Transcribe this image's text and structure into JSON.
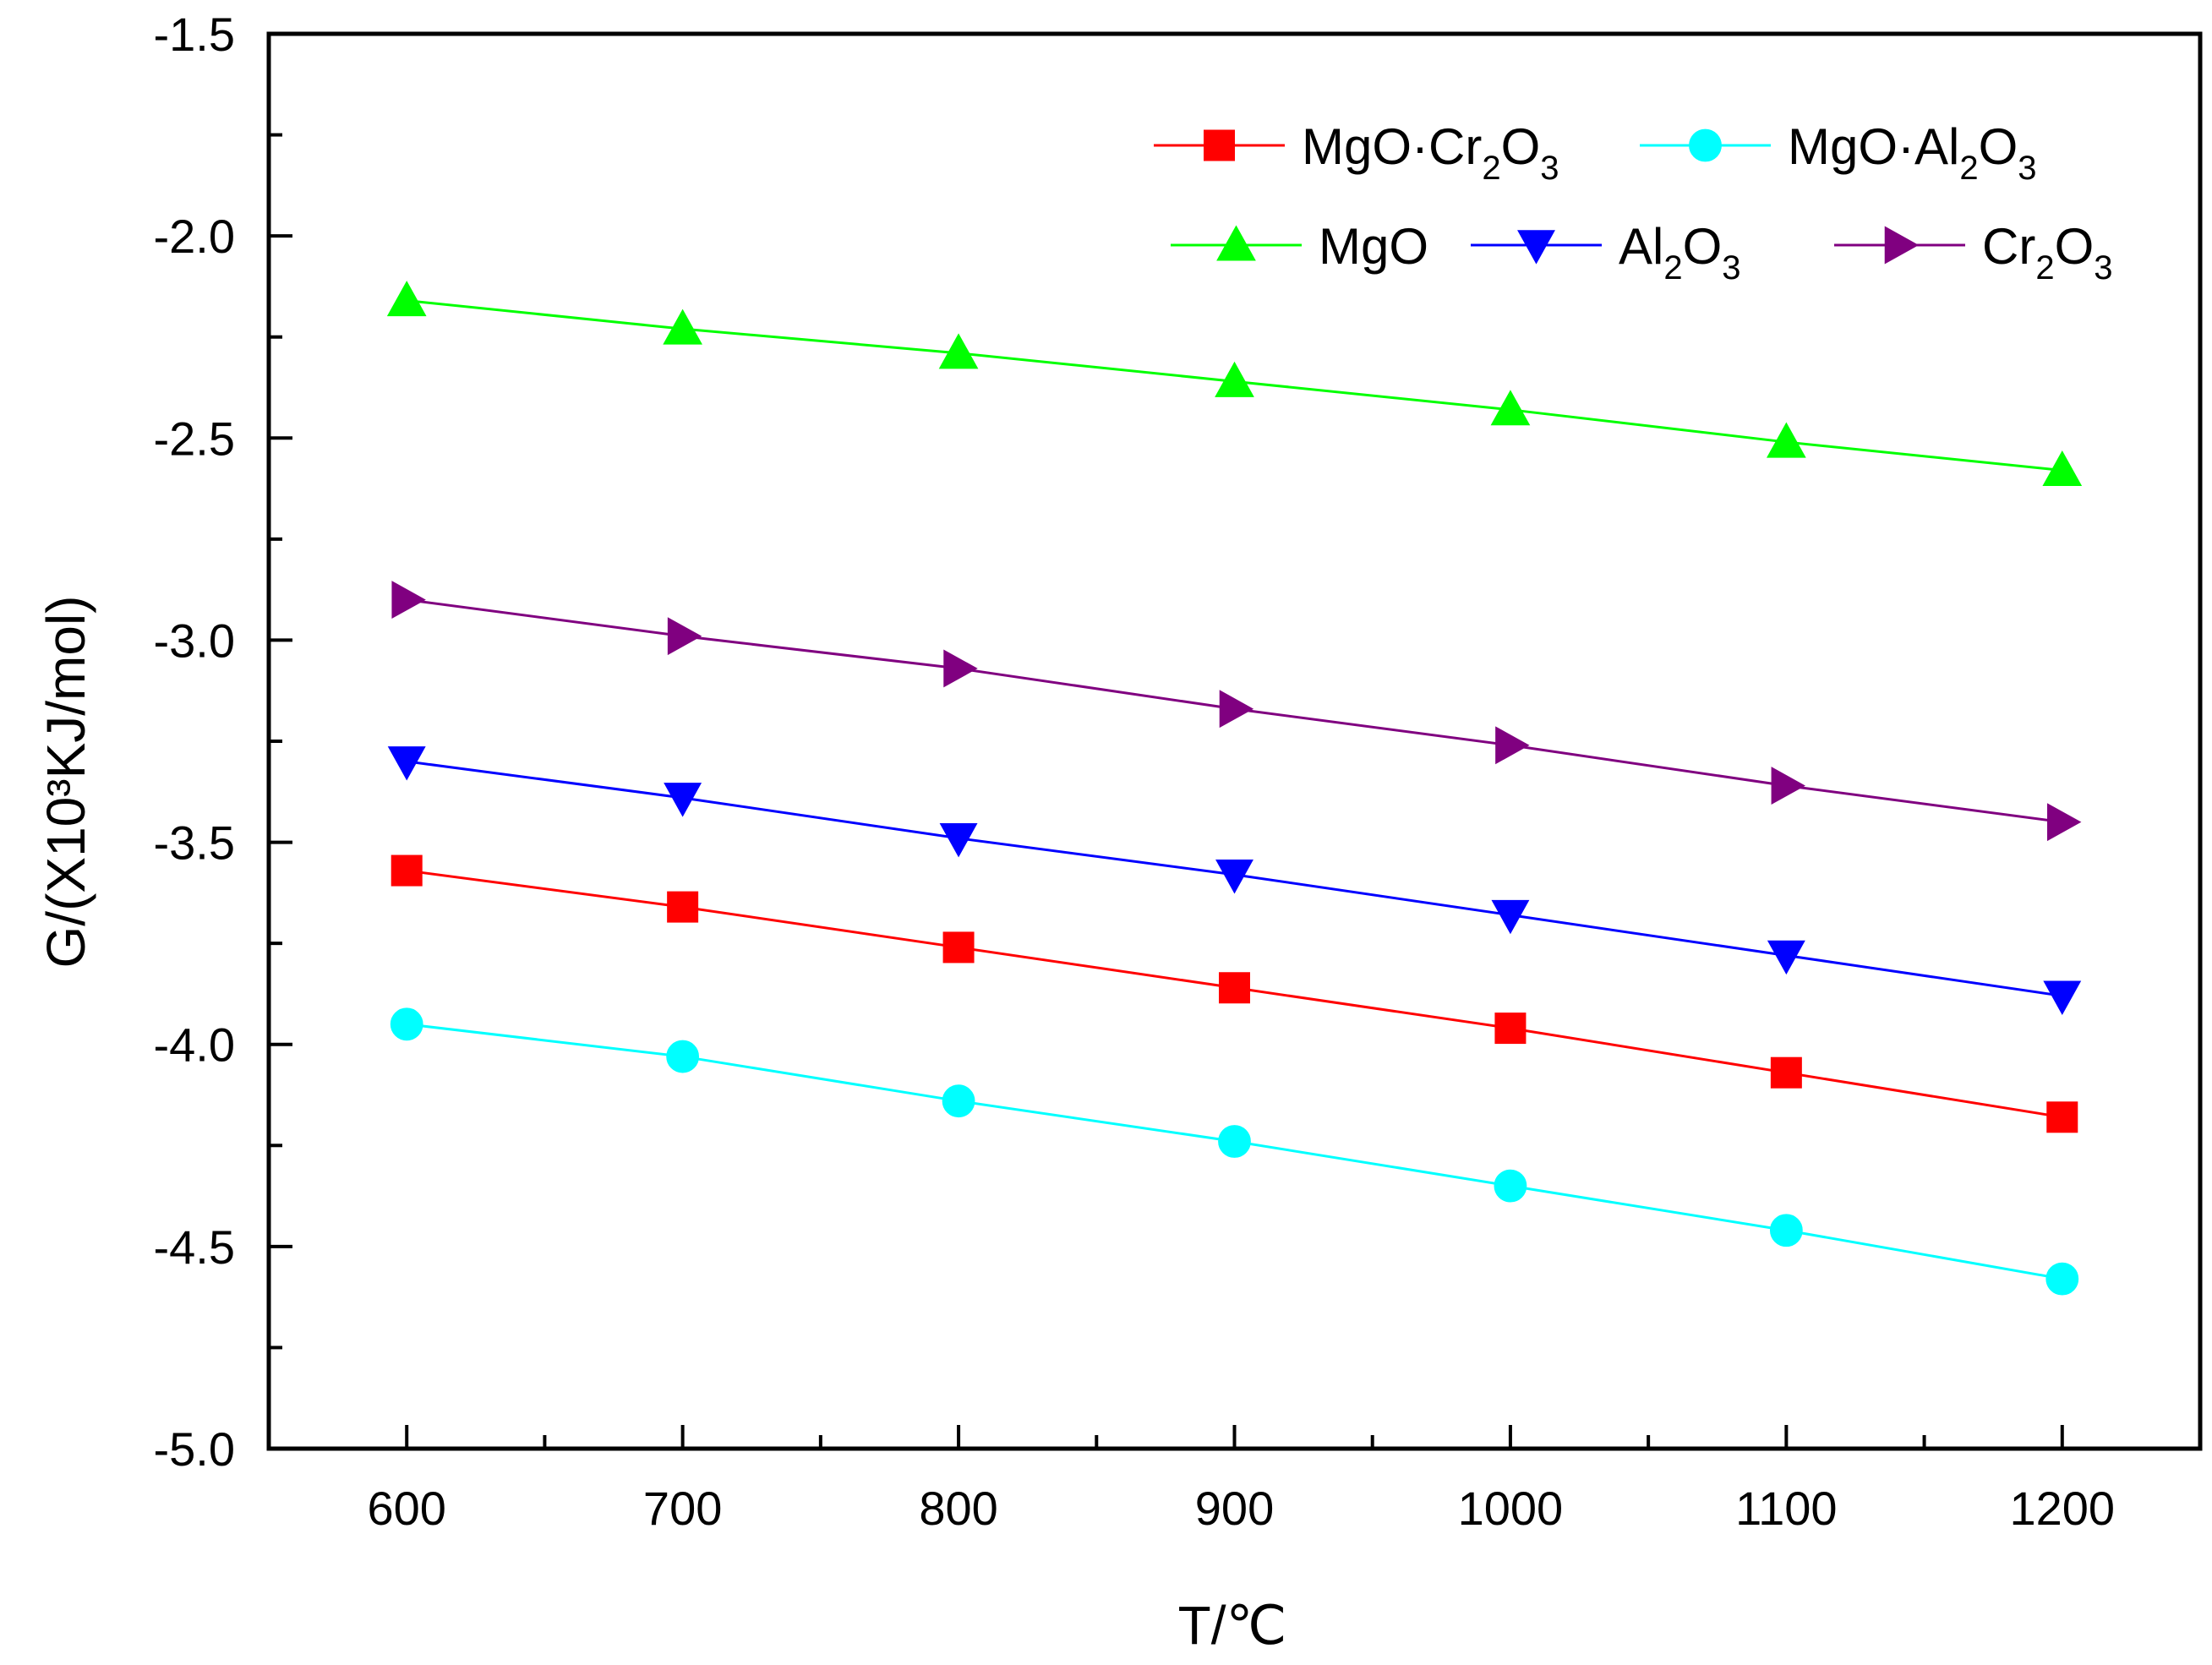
{
  "chart_data": {
    "type": "line",
    "xlabel": "T/℃",
    "ylabel": "G/(X10³KJ/mol)",
    "x": [
      600,
      700,
      800,
      900,
      1000,
      1100,
      1200
    ],
    "xlim": [
      550,
      1250
    ],
    "ylim": [
      -5.0,
      -1.5
    ],
    "xticks": [
      600,
      700,
      800,
      900,
      1000,
      1100,
      1200
    ],
    "xtick_labels": [
      "600",
      "700",
      "800",
      "900",
      "1000",
      "1100",
      "1200"
    ],
    "yticks": [
      -1.5,
      -2.0,
      -2.5,
      -3.0,
      -3.5,
      -4.0,
      -4.5,
      -5.0
    ],
    "ytick_labels": [
      "-1.5",
      "-2.0",
      "-2.5",
      "-3.0",
      "-3.5",
      "-4.0",
      "-4.5",
      "-5.0"
    ],
    "grid": false,
    "legend_position": "top-right",
    "series": [
      {
        "name": "MgO·Cr2O3",
        "label_parts": [
          "MgO·Cr",
          "2",
          "O",
          "3"
        ],
        "color": "#ff0000",
        "marker": "square",
        "values": [
          -3.57,
          -3.66,
          -3.76,
          -3.86,
          -3.96,
          -4.07,
          -4.18
        ]
      },
      {
        "name": "MgO·Al2O3",
        "label_parts": [
          "MgO·Al",
          "2",
          "O",
          "3"
        ],
        "color": "#00ffff",
        "marker": "circle",
        "values": [
          -3.95,
          -4.03,
          -4.14,
          -4.24,
          -4.35,
          -4.46,
          -4.58
        ]
      },
      {
        "name": "MgO",
        "label_parts": [
          "MgO"
        ],
        "color": "#00ff00",
        "marker": "triangle-up",
        "values": [
          -2.16,
          -2.23,
          -2.29,
          -2.36,
          -2.43,
          -2.51,
          -2.58
        ]
      },
      {
        "name": "Al2O3",
        "label_parts": [
          "Al",
          "2",
          "O",
          "3"
        ],
        "color": "#0000ff",
        "marker": "triangle-down",
        "values": [
          -3.3,
          -3.39,
          -3.49,
          -3.58,
          -3.68,
          -3.78,
          -3.88
        ]
      },
      {
        "name": "Cr2O3",
        "label_parts": [
          "Cr",
          "2",
          "O",
          "3"
        ],
        "color": "#800080",
        "marker": "triangle-right",
        "values": [
          -2.9,
          -2.99,
          -3.07,
          -3.17,
          -3.26,
          -3.36,
          -3.45
        ]
      }
    ]
  }
}
